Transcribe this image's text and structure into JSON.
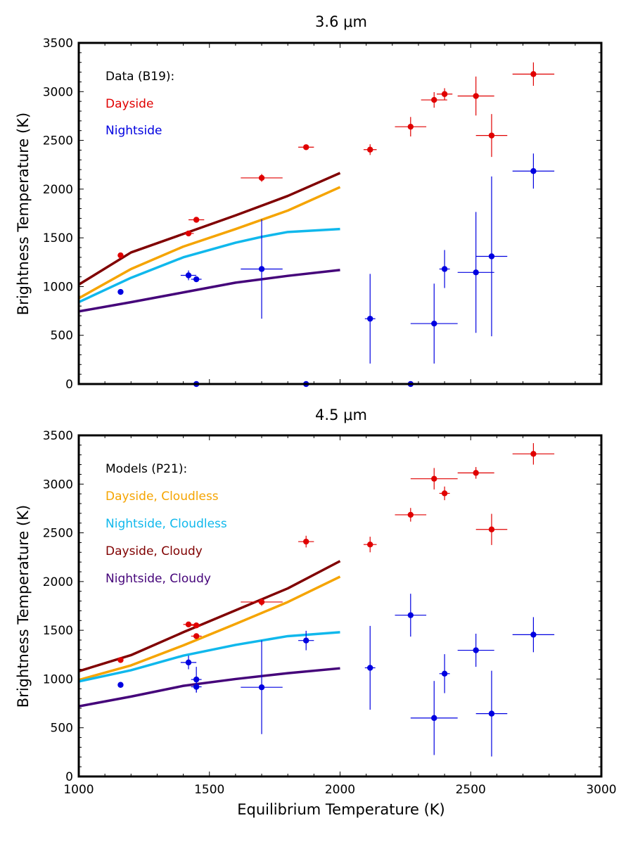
{
  "chart_data": [
    {
      "type": "scatter",
      "title": "3.6 μm",
      "xlabel": "",
      "ylabel": "Brightness Temperature (K)",
      "xlim": [
        1000,
        3000
      ],
      "ylim": [
        0,
        3500
      ],
      "xticks": [
        "1000",
        "1500",
        "2000",
        "2500",
        "3000"
      ],
      "yticks": [
        "0",
        "500",
        "1000",
        "1500",
        "2000",
        "2500",
        "3000",
        "3500"
      ],
      "legend_title": "Data (B19):",
      "legend": [
        {
          "label": "Dayside",
          "color": "#e00000"
        },
        {
          "label": "Nightside",
          "color": "#0000e0"
        }
      ],
      "legend_placement": "top-left",
      "colors": {
        "dayside": "#e00000",
        "nightside": "#0000e0"
      },
      "points": {
        "dayside": [
          {
            "x": 1160,
            "y": 1320,
            "xerr": 0,
            "yerr": 0
          },
          {
            "x": 1420,
            "y": 1545,
            "xerr": 20,
            "yerr": 0
          },
          {
            "x": 1450,
            "y": 1685,
            "xerr": 30,
            "yerr": 0
          },
          {
            "x": 1700,
            "y": 2115,
            "xerr": 80,
            "yerr": 40
          },
          {
            "x": 1870,
            "y": 2430,
            "xerr": 30,
            "yerr": 0
          },
          {
            "x": 2115,
            "y": 2405,
            "xerr": 25,
            "yerr": 55
          },
          {
            "x": 2270,
            "y": 2640,
            "xerr": 60,
            "yerr": 100
          },
          {
            "x": 2360,
            "y": 2915,
            "xerr": 50,
            "yerr": 80
          },
          {
            "x": 2400,
            "y": 2975,
            "xerr": 30,
            "yerr": 60
          },
          {
            "x": 2520,
            "y": 2955,
            "xerr": 70,
            "yerr": 200
          },
          {
            "x": 2580,
            "y": 2550,
            "xerr": 60,
            "yerr": 220
          },
          {
            "x": 2740,
            "y": 3180,
            "xerr": 80,
            "yerr": 120
          }
        ],
        "nightside": [
          {
            "x": 1160,
            "y": 945,
            "xerr": 0,
            "yerr": 0
          },
          {
            "x": 1420,
            "y": 1115,
            "xerr": 30,
            "yerr": 50
          },
          {
            "x": 1450,
            "y": 1075,
            "xerr": 20,
            "yerr": 0
          },
          {
            "x": 1700,
            "y": 1180,
            "xerr": 80,
            "yerr": 510
          },
          {
            "x": 2115,
            "y": 670,
            "xerr": 20,
            "yerr": 460
          },
          {
            "x": 2360,
            "y": 620,
            "xerr": 90,
            "yerr": 410
          },
          {
            "x": 2400,
            "y": 1180,
            "xerr": 20,
            "yerr": 195
          },
          {
            "x": 2520,
            "y": 1145,
            "xerr": 70,
            "yerr": 620
          },
          {
            "x": 2580,
            "y": 1310,
            "xerr": 60,
            "yerr": 820
          },
          {
            "x": 2740,
            "y": 2185,
            "xerr": 80,
            "yerr": 180
          },
          {
            "x": 1450,
            "y": 0,
            "xerr": 0,
            "yerr": 0
          },
          {
            "x": 1870,
            "y": 0,
            "xerr": 0,
            "yerr": 0
          },
          {
            "x": 2270,
            "y": 0,
            "xerr": 0,
            "yerr": 0
          }
        ]
      },
      "models": [
        {
          "color": "#800000",
          "x": [
            1000,
            1200,
            1400,
            1600,
            1800,
            2000
          ],
          "y": [
            1020,
            1350,
            1540,
            1730,
            1930,
            2165
          ]
        },
        {
          "color": "#f5a400",
          "x": [
            1000,
            1200,
            1400,
            1600,
            1800,
            2000
          ],
          "y": [
            880,
            1180,
            1410,
            1590,
            1780,
            2020
          ]
        },
        {
          "color": "#10b8ec",
          "x": [
            1000,
            1200,
            1400,
            1600,
            1700,
            1800,
            2000
          ],
          "y": [
            840,
            1090,
            1300,
            1450,
            1510,
            1560,
            1590
          ]
        },
        {
          "color": "#45047a",
          "x": [
            1000,
            1200,
            1400,
            1600,
            1800,
            2000
          ],
          "y": [
            745,
            840,
            940,
            1040,
            1110,
            1170
          ]
        }
      ]
    },
    {
      "type": "scatter",
      "title": "4.5 μm",
      "xlabel": "Equilibrium Temperature (K)",
      "ylabel": "Brightness Temperature (K)",
      "xlim": [
        1000,
        3000
      ],
      "ylim": [
        0,
        3500
      ],
      "xticks": [
        "1000",
        "1500",
        "2000",
        "2500",
        "3000"
      ],
      "yticks": [
        "0",
        "500",
        "1000",
        "1500",
        "2000",
        "2500",
        "3000",
        "3500"
      ],
      "legend_title": "Models (P21):",
      "legend": [
        {
          "label": "Dayside, Cloudless",
          "color": "#f5a400"
        },
        {
          "label": "Nightside, Cloudless",
          "color": "#10b8ec"
        },
        {
          "label": "Dayside, Cloudy",
          "color": "#800000"
        },
        {
          "label": "Nightside, Cloudy",
          "color": "#45047a"
        }
      ],
      "legend_placement": "top-left",
      "colors": {
        "dayside": "#e00000",
        "nightside": "#0000e0"
      },
      "points": {
        "dayside": [
          {
            "x": 1160,
            "y": 1195,
            "xerr": 0,
            "yerr": 0
          },
          {
            "x": 1420,
            "y": 1560,
            "xerr": 20,
            "yerr": 0
          },
          {
            "x": 1450,
            "y": 1550,
            "xerr": 20,
            "yerr": 0
          },
          {
            "x": 1450,
            "y": 1440,
            "xerr": 20,
            "yerr": 0
          },
          {
            "x": 1700,
            "y": 1790,
            "xerr": 80,
            "yerr": 40
          },
          {
            "x": 1870,
            "y": 2410,
            "xerr": 30,
            "yerr": 60
          },
          {
            "x": 2115,
            "y": 2380,
            "xerr": 25,
            "yerr": 80
          },
          {
            "x": 2270,
            "y": 2685,
            "xerr": 60,
            "yerr": 70
          },
          {
            "x": 2360,
            "y": 3055,
            "xerr": 90,
            "yerr": 110
          },
          {
            "x": 2400,
            "y": 2905,
            "xerr": 20,
            "yerr": 70
          },
          {
            "x": 2520,
            "y": 3115,
            "xerr": 70,
            "yerr": 60
          },
          {
            "x": 2580,
            "y": 2535,
            "xerr": 60,
            "yerr": 160
          },
          {
            "x": 2740,
            "y": 3310,
            "xerr": 80,
            "yerr": 110
          }
        ],
        "nightside": [
          {
            "x": 1160,
            "y": 940,
            "xerr": 0,
            "yerr": 0
          },
          {
            "x": 1420,
            "y": 1170,
            "xerr": 30,
            "yerr": 70
          },
          {
            "x": 1450,
            "y": 995,
            "xerr": 20,
            "yerr": 130
          },
          {
            "x": 1450,
            "y": 920,
            "xerr": 20,
            "yerr": 60
          },
          {
            "x": 1700,
            "y": 915,
            "xerr": 80,
            "yerr": 480
          },
          {
            "x": 1870,
            "y": 1395,
            "xerr": 30,
            "yerr": 100
          },
          {
            "x": 2115,
            "y": 1115,
            "xerr": 20,
            "yerr": 430
          },
          {
            "x": 2270,
            "y": 1655,
            "xerr": 60,
            "yerr": 220
          },
          {
            "x": 2360,
            "y": 600,
            "xerr": 90,
            "yerr": 380
          },
          {
            "x": 2400,
            "y": 1055,
            "xerr": 20,
            "yerr": 200
          },
          {
            "x": 2520,
            "y": 1295,
            "xerr": 70,
            "yerr": 170
          },
          {
            "x": 2580,
            "y": 645,
            "xerr": 60,
            "yerr": 440
          },
          {
            "x": 2740,
            "y": 1455,
            "xerr": 80,
            "yerr": 180
          }
        ]
      },
      "models": [
        {
          "color": "#800000",
          "x": [
            1000,
            1200,
            1400,
            1600,
            1800,
            2000
          ],
          "y": [
            1080,
            1245,
            1480,
            1705,
            1930,
            2210
          ]
        },
        {
          "color": "#f5a400",
          "x": [
            1000,
            1200,
            1400,
            1600,
            1800,
            2000
          ],
          "y": [
            990,
            1140,
            1345,
            1565,
            1790,
            2050
          ]
        },
        {
          "color": "#10b8ec",
          "x": [
            1000,
            1200,
            1400,
            1600,
            1800,
            2000
          ],
          "y": [
            975,
            1090,
            1240,
            1350,
            1440,
            1480
          ]
        },
        {
          "color": "#45047a",
          "x": [
            1000,
            1200,
            1400,
            1600,
            1800,
            2000
          ],
          "y": [
            720,
            820,
            930,
            1000,
            1060,
            1110
          ]
        }
      ]
    }
  ]
}
